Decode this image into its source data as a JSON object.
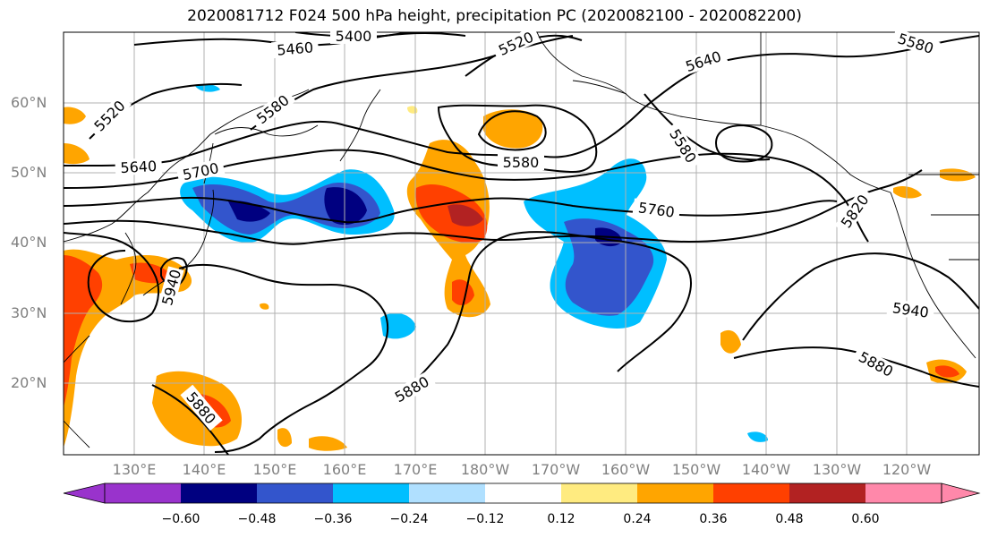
{
  "title": "2020081712 F024 500 hPa height, precipitation PC (2020082100 - 2020082200)",
  "lat_labels": [
    "60°N",
    "50°N",
    "40°N",
    "30°N",
    "20°N"
  ],
  "lon_labels": [
    "130°E",
    "140°E",
    "150°E",
    "160°E",
    "170°E",
    "180°W",
    "170°W",
    "160°W",
    "150°W",
    "140°W",
    "130°W",
    "120°W"
  ],
  "contour_labels": [
    "5460",
    "5400",
    "5520",
    "5520",
    "5580",
    "5580",
    "5580",
    "5640",
    "5640",
    "5700",
    "5760",
    "5820",
    "5580",
    "5940",
    "5880",
    "5880",
    "5880",
    "5940"
  ],
  "colorbar": {
    "tick_labels": [
      "−0.60",
      "−0.48",
      "−0.36",
      "−0.24",
      "−0.12",
      "0.12",
      "0.24",
      "0.36",
      "0.48",
      "0.60"
    ],
    "colors": [
      "#9933cc",
      "#000080",
      "#3355cc",
      "#00bfff",
      "#b0e0ff",
      "#ffffff",
      "#ffeb80",
      "#ffa500",
      "#ff4000",
      "#b22222",
      "#ff88aa"
    ]
  },
  "colors": {
    "grid": "#b0b0b0",
    "contour": "#000000",
    "coast": "#000000",
    "axis_label": "#808080"
  }
}
